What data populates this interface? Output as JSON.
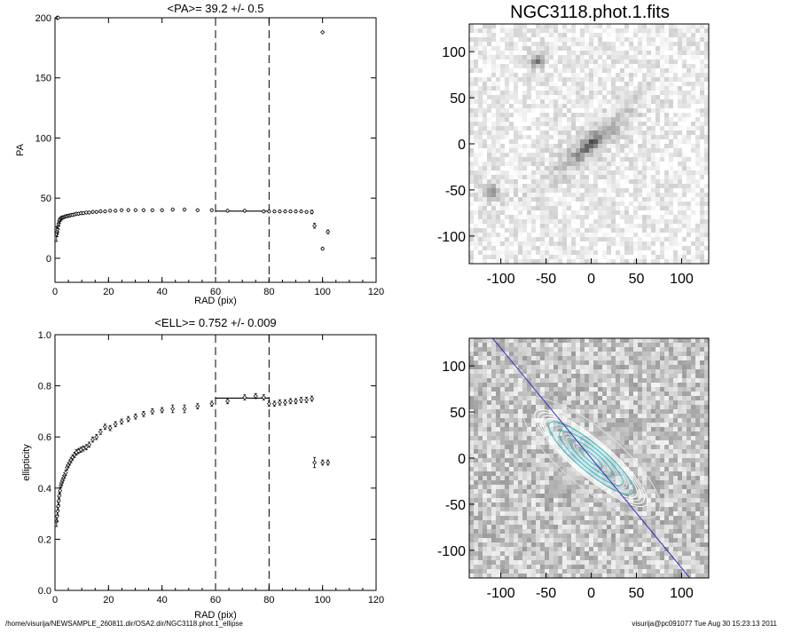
{
  "footer": {
    "path": "/home/visurija/NEWSAMPLE_260811.dir/OSA2.dir/NGC3118.phot.1_ellipse",
    "user_stamp": "visurija@pc091077  Tue Aug 30 15:23:13 2011"
  },
  "chart_data": [
    {
      "id": "pa",
      "type": "scatter",
      "title": "<PA>=  39.2 +/-   0.5",
      "xlabel": "RAD (pix)",
      "ylabel": "PA",
      "xlim": [
        0,
        120
      ],
      "ylim": [
        -20,
        200
      ],
      "xticks": [
        0,
        20,
        40,
        60,
        80,
        100,
        120
      ],
      "xtick_labels": [
        "0",
        "20",
        "40",
        "60",
        "80",
        "100",
        "120"
      ],
      "yticks": [
        0,
        50,
        100,
        150,
        200
      ],
      "ytick_labels": [
        "0",
        "50",
        "100",
        "150",
        "200"
      ],
      "vlines": [
        60,
        80
      ],
      "mean_line": {
        "x": [
          60,
          80
        ],
        "y": 39.2
      },
      "x": [
        0.6,
        0.8,
        1.0,
        1.2,
        1.4,
        1.6,
        1.9,
        2.2,
        2.5,
        2.8,
        3.2,
        3.6,
        4,
        4.5,
        5,
        5.5,
        6,
        6.6,
        7.3,
        8,
        8.8,
        9.7,
        10.6,
        11.7,
        12.8,
        14.1,
        15.5,
        17,
        18.7,
        20.6,
        22.6,
        24.9,
        27.4,
        30.1,
        33.1,
        36.4,
        40,
        44,
        48.4,
        53.3,
        58.6,
        64.5,
        70.9,
        78,
        80,
        82,
        84,
        86,
        88,
        90,
        92,
        94,
        96,
        97,
        100,
        102
      ],
      "y": [
        20,
        22,
        24,
        27,
        29,
        31,
        32,
        33,
        33.5,
        34,
        34,
        34.5,
        35,
        35,
        35.5,
        35.5,
        36,
        36,
        36.5,
        37,
        37,
        37.5,
        37.5,
        38,
        38,
        38.5,
        38.5,
        39,
        39,
        39.5,
        39.5,
        40,
        40,
        40,
        40,
        40,
        40,
        40.5,
        40.5,
        40,
        40,
        39.5,
        39.5,
        39,
        39,
        39,
        39,
        39,
        39,
        39,
        39,
        38.5,
        38.5,
        27,
        8,
        22
      ],
      "err": [
        6,
        4,
        3,
        2.5,
        2,
        2,
        1.5,
        1.5,
        1.2,
        1.2,
        1,
        1,
        1,
        1,
        1,
        1,
        1,
        1,
        1,
        1,
        1,
        1,
        1,
        1,
        1,
        1,
        1,
        1,
        1,
        1,
        1,
        1,
        1,
        1,
        1,
        1,
        1,
        1,
        1,
        1,
        1,
        1,
        1,
        1,
        1,
        1,
        1,
        1,
        1,
        1,
        1,
        1,
        1.5,
        2,
        1,
        1.5
      ],
      "extra_points": [
        {
          "x": 0.8,
          "y": 200
        },
        {
          "x": 1.2,
          "y": 200
        },
        {
          "x": 100,
          "y": 188
        }
      ]
    },
    {
      "id": "ell",
      "type": "scatter",
      "title": "<ELL>= 0.752 +/-  0.009",
      "xlabel": "RAD (pix)",
      "ylabel": "ellipticity",
      "xlim": [
        0,
        120
      ],
      "ylim": [
        0,
        1
      ],
      "xticks": [
        0,
        20,
        40,
        60,
        80,
        100,
        120
      ],
      "xtick_labels": [
        "0",
        "20",
        "40",
        "60",
        "80",
        "100",
        "120"
      ],
      "yticks": [
        0,
        0.2,
        0.4,
        0.6,
        0.8,
        1.0
      ],
      "ytick_labels": [
        "0.0",
        "0.2",
        "0.4",
        "0.6",
        "0.8",
        "1.0"
      ],
      "vlines": [
        60,
        80
      ],
      "mean_line": {
        "x": [
          60,
          80
        ],
        "y": 0.752
      },
      "x": [
        0.6,
        0.8,
        1.0,
        1.2,
        1.4,
        1.6,
        1.9,
        2.2,
        2.5,
        2.8,
        3.2,
        3.6,
        4,
        4.5,
        5,
        5.5,
        6,
        6.6,
        7.3,
        8,
        8.8,
        9.7,
        10.6,
        11.7,
        12.8,
        14.1,
        15.5,
        17,
        18.7,
        20.6,
        22.6,
        24.9,
        27.4,
        30.1,
        33.1,
        36.4,
        40,
        44,
        48.4,
        53.3,
        58.6,
        64.5,
        70.9,
        75,
        78,
        80,
        82,
        84,
        86,
        88,
        90,
        92,
        94,
        96,
        97,
        100,
        102
      ],
      "y": [
        0.27,
        0.29,
        0.31,
        0.33,
        0.35,
        0.37,
        0.39,
        0.41,
        0.42,
        0.43,
        0.44,
        0.45,
        0.46,
        0.48,
        0.49,
        0.5,
        0.51,
        0.52,
        0.53,
        0.54,
        0.545,
        0.55,
        0.555,
        0.56,
        0.57,
        0.59,
        0.6,
        0.62,
        0.64,
        0.635,
        0.65,
        0.66,
        0.67,
        0.68,
        0.69,
        0.7,
        0.705,
        0.71,
        0.71,
        0.72,
        0.73,
        0.74,
        0.755,
        0.76,
        0.755,
        0.73,
        0.73,
        0.735,
        0.735,
        0.74,
        0.74,
        0.745,
        0.745,
        0.75,
        0.5,
        0.5,
        0.5
      ],
      "err": [
        0.02,
        0.02,
        0.015,
        0.015,
        0.015,
        0.012,
        0.012,
        0.01,
        0.01,
        0.01,
        0.01,
        0.01,
        0.01,
        0.01,
        0.01,
        0.01,
        0.01,
        0.01,
        0.01,
        0.01,
        0.01,
        0.01,
        0.01,
        0.01,
        0.01,
        0.01,
        0.01,
        0.01,
        0.01,
        0.01,
        0.01,
        0.01,
        0.01,
        0.01,
        0.01,
        0.01,
        0.01,
        0.015,
        0.015,
        0.01,
        0.01,
        0.01,
        0.01,
        0.01,
        0.01,
        0.01,
        0.01,
        0.01,
        0.01,
        0.01,
        0.01,
        0.01,
        0.01,
        0.01,
        0.02,
        0.01,
        0.01
      ]
    },
    {
      "id": "image",
      "type": "heatmap",
      "title": "NGC3118.phot.1.fits",
      "xlim": [
        -135,
        130
      ],
      "ylim": [
        -130,
        130
      ],
      "xticks": [
        -100,
        -50,
        0,
        50,
        100
      ],
      "xtick_labels": [
        "-100",
        "-50",
        "0",
        "50",
        "100"
      ],
      "yticks": [
        -100,
        -50,
        0,
        50,
        100
      ],
      "ytick_labels": [
        "-100",
        "-50",
        "0",
        "50",
        "100"
      ],
      "galaxy": {
        "x": 0,
        "y": 0,
        "pa_deg": 40,
        "ellipticity": 0.75
      },
      "stars": [
        {
          "x": -108,
          "y": -52
        },
        {
          "x": -60,
          "y": 90
        }
      ]
    },
    {
      "id": "model",
      "type": "heatmap",
      "title": "",
      "xlim": [
        -135,
        130
      ],
      "ylim": [
        -130,
        130
      ],
      "xticks": [
        -100,
        -50,
        0,
        50,
        100
      ],
      "xtick_labels": [
        "-100",
        "-50",
        "0",
        "50",
        "100"
      ],
      "yticks": [
        -100,
        -50,
        0,
        50,
        100
      ],
      "ytick_labels": [
        "-100",
        "-50",
        "0",
        "50",
        "100"
      ],
      "galaxy": {
        "x": 0,
        "y": 0,
        "pa_deg": 40,
        "ellipticity": 0.75
      },
      "pa_line_color": "#3030c0",
      "contour_color": "#40c0c0"
    }
  ]
}
